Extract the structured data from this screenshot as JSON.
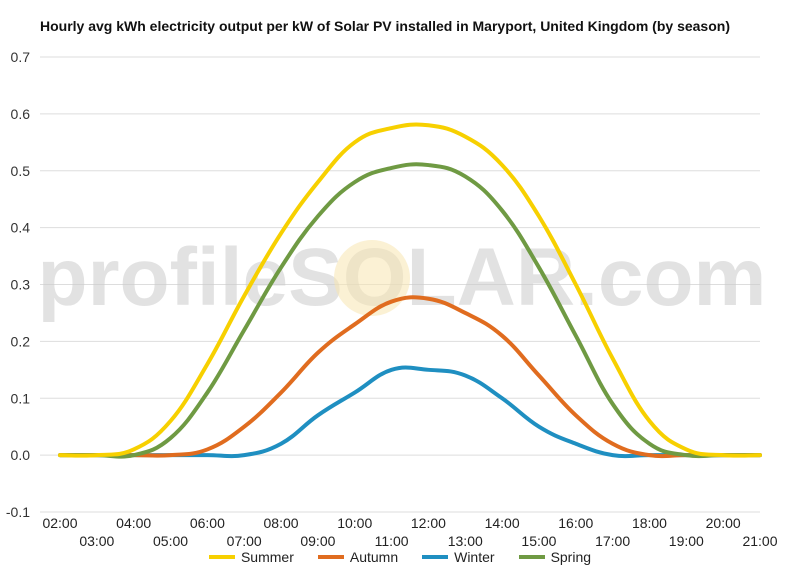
{
  "title": "Hourly avg kWh electricity output per kW of Solar PV installed in Maryport, United Kingdom (by season)",
  "watermark": "profileSOLAR.com",
  "chart_data": {
    "type": "line",
    "title": "Hourly avg kWh electricity output per kW of Solar PV installed in Maryport, United Kingdom (by season)",
    "xlabel": "",
    "ylabel": "",
    "ylim": [
      -0.1,
      0.7
    ],
    "yticks": [
      "-0.1",
      "0.0",
      "0.1",
      "0.2",
      "0.3",
      "0.4",
      "0.5",
      "0.6",
      "0.7"
    ],
    "categories": [
      "02:00",
      "03:00",
      "04:00",
      "05:00",
      "06:00",
      "07:00",
      "08:00",
      "09:00",
      "10:00",
      "11:00",
      "12:00",
      "13:00",
      "14:00",
      "15:00",
      "16:00",
      "17:00",
      "18:00",
      "19:00",
      "20:00",
      "21:00"
    ],
    "grid": true,
    "legend_position": "bottom",
    "series": [
      {
        "name": "Summer",
        "color": "#f7d000",
        "values": [
          0,
          0,
          0.01,
          0.06,
          0.16,
          0.28,
          0.39,
          0.48,
          0.55,
          0.575,
          0.58,
          0.56,
          0.51,
          0.42,
          0.3,
          0.17,
          0.06,
          0.01,
          0,
          0
        ]
      },
      {
        "name": "Autumn",
        "color": "#e06c1f",
        "values": [
          0,
          0,
          0,
          0,
          0.01,
          0.05,
          0.11,
          0.18,
          0.23,
          0.27,
          0.275,
          0.25,
          0.21,
          0.14,
          0.07,
          0.02,
          0,
          0,
          0,
          0
        ]
      },
      {
        "name": "Winter",
        "color": "#1f8fc1",
        "values": [
          0,
          0,
          0,
          0,
          0,
          0,
          0.02,
          0.07,
          0.11,
          0.15,
          0.15,
          0.14,
          0.1,
          0.05,
          0.02,
          0,
          0,
          0,
          0,
          0
        ]
      },
      {
        "name": "Spring",
        "color": "#6f9a43",
        "values": [
          0,
          0,
          0,
          0.03,
          0.11,
          0.22,
          0.33,
          0.42,
          0.48,
          0.505,
          0.51,
          0.49,
          0.43,
          0.33,
          0.21,
          0.09,
          0.02,
          0,
          0,
          0
        ]
      }
    ]
  }
}
